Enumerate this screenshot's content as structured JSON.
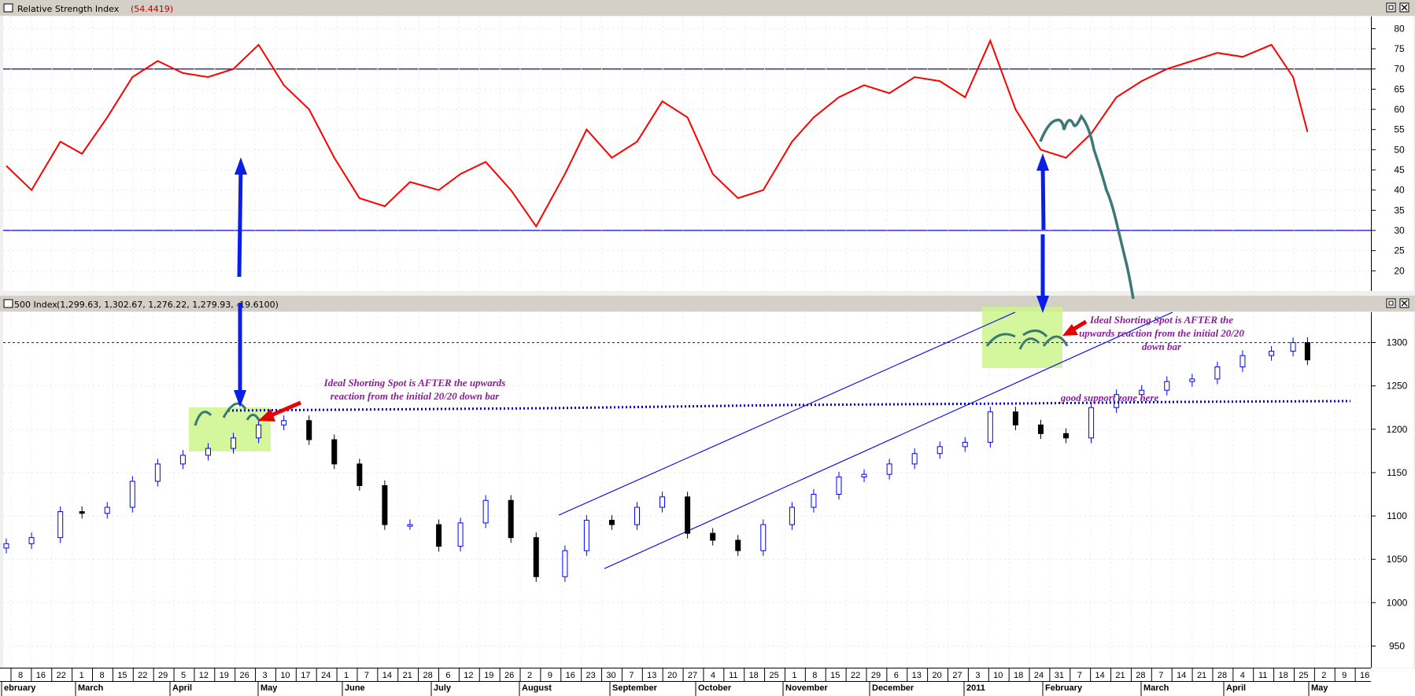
{
  "rsi_panel": {
    "title": "Relative Strength Index",
    "value_text": "(54.4419)"
  },
  "price_panel": {
    "title": "500 Index",
    "ohlc_text": "(1,299.63, 1,302.67, 1,276.22, 1,279.93, -19.6100)"
  },
  "annotations": {
    "left_note": [
      "Ideal Shorting Spot is AFTER the upwards",
      "reaction from the initial 20/20 down bar"
    ],
    "right_note": [
      "Ideal Shorting Spot is AFTER the",
      "upwards reaction from the initial 20/20",
      "down bar"
    ],
    "support_note": "good support zone here"
  },
  "colors": {
    "rsi_line": "#ff0000",
    "projection": "#3c7878",
    "channel": "#0000ff",
    "arrow_blue": "#0a1ee6",
    "arrow_red": "#e60000",
    "highlight": "#ccf58c",
    "note": "#8a1f9a"
  },
  "chart_data": [
    {
      "type": "line",
      "title": "Relative Strength Index",
      "current_value": 54.4419,
      "ylim": [
        15,
        83
      ],
      "yticks": [
        20,
        25,
        30,
        35,
        40,
        45,
        50,
        55,
        60,
        65,
        70,
        75,
        80
      ],
      "reference_lines": [
        70,
        30
      ],
      "x": [
        "2010-02-01",
        "2010-02-08",
        "2010-02-16",
        "2010-02-22",
        "2010-03-01",
        "2010-03-08",
        "2010-03-15",
        "2010-03-22",
        "2010-03-29",
        "2010-04-05",
        "2010-04-12",
        "2010-04-19",
        "2010-04-26",
        "2010-05-03",
        "2010-05-10",
        "2010-05-17",
        "2010-05-24",
        "2010-06-01",
        "2010-06-07",
        "2010-06-14",
        "2010-06-21",
        "2010-06-28",
        "2010-07-06",
        "2010-07-12",
        "2010-07-19",
        "2010-07-26",
        "2010-08-02",
        "2010-08-09",
        "2010-08-16",
        "2010-08-23",
        "2010-08-30",
        "2010-09-07",
        "2010-09-13",
        "2010-09-20",
        "2010-09-27",
        "2010-10-04",
        "2010-10-11",
        "2010-10-18",
        "2010-10-25",
        "2010-11-01",
        "2010-11-08",
        "2010-11-15",
        "2010-11-22",
        "2010-11-29",
        "2010-12-06",
        "2010-12-13",
        "2010-12-20",
        "2010-12-27",
        "2011-01-03",
        "2011-01-10",
        "2011-01-18",
        "2011-01-24",
        "2011-01-28"
      ],
      "values": [
        46,
        40,
        52,
        49,
        58,
        68,
        72,
        69,
        68,
        70,
        76,
        66,
        60,
        48,
        38,
        36,
        42,
        40,
        44,
        47,
        40,
        31,
        44,
        55,
        48,
        52,
        62,
        58,
        44,
        38,
        40,
        52,
        58,
        63,
        66,
        64,
        68,
        67,
        63,
        77,
        60,
        50,
        48,
        54,
        63,
        67,
        70,
        72,
        74,
        73,
        76,
        68,
        54.4
      ]
    },
    {
      "type": "candlestick",
      "title": "500 Index",
      "last_bar": {
        "open": 1299.63,
        "high": 1302.67,
        "low": 1276.22,
        "close": 1279.93,
        "change": -19.61
      },
      "ylim": [
        925,
        1335
      ],
      "yticks": [
        950,
        1000,
        1050,
        1100,
        1150,
        1200,
        1250,
        1300
      ],
      "reference_line": 1300,
      "support_line": 1225,
      "x": [
        "2010-02-01",
        "2010-02-08",
        "2010-02-16",
        "2010-02-22",
        "2010-03-01",
        "2010-03-08",
        "2010-03-15",
        "2010-03-22",
        "2010-03-29",
        "2010-04-05",
        "2010-04-12",
        "2010-04-19",
        "2010-04-26",
        "2010-05-03",
        "2010-05-10",
        "2010-05-17",
        "2010-05-24",
        "2010-06-01",
        "2010-06-07",
        "2010-06-14",
        "2010-06-21",
        "2010-06-28",
        "2010-07-06",
        "2010-07-12",
        "2010-07-19",
        "2010-07-26",
        "2010-08-02",
        "2010-08-09",
        "2010-08-16",
        "2010-08-23",
        "2010-08-30",
        "2010-09-07",
        "2010-09-13",
        "2010-09-20",
        "2010-09-27",
        "2010-10-04",
        "2010-10-11",
        "2010-10-18",
        "2010-10-25",
        "2010-11-01",
        "2010-11-08",
        "2010-11-15",
        "2010-11-22",
        "2010-11-29",
        "2010-12-06",
        "2010-12-13",
        "2010-12-20",
        "2010-12-27",
        "2011-01-03",
        "2011-01-10",
        "2011-01-18",
        "2011-01-24",
        "2011-01-28"
      ],
      "close": [
        1068,
        1075,
        1105,
        1103,
        1110,
        1140,
        1160,
        1170,
        1178,
        1190,
        1205,
        1210,
        1188,
        1160,
        1135,
        1090,
        1090,
        1065,
        1092,
        1118,
        1075,
        1030,
        1060,
        1095,
        1090,
        1110,
        1122,
        1080,
        1072,
        1060,
        1090,
        1110,
        1125,
        1145,
        1148,
        1160,
        1172,
        1180,
        1185,
        1220,
        1205,
        1195,
        1190,
        1225,
        1240,
        1245,
        1255,
        1258,
        1272,
        1285,
        1290,
        1300,
        1280
      ]
    }
  ],
  "x_axis": {
    "dates": [
      "8",
      "16",
      "22",
      "1",
      "8",
      "15",
      "22",
      "29",
      "5",
      "12",
      "19",
      "26",
      "3",
      "10",
      "17",
      "24",
      "1",
      "7",
      "14",
      "21",
      "28",
      "6",
      "12",
      "19",
      "26",
      "2",
      "9",
      "16",
      "23",
      "30",
      "7",
      "13",
      "20",
      "27",
      "4",
      "11",
      "18",
      "25",
      "1",
      "8",
      "15",
      "22",
      "29",
      "6",
      "13",
      "20",
      "27",
      "3",
      "10",
      "18",
      "24",
      "31",
      "7",
      "14",
      "21",
      "28",
      "7",
      "14",
      "21",
      "28",
      "4",
      "11",
      "18",
      "25",
      "2",
      "9",
      "16"
    ],
    "months": [
      "ebruary",
      "March",
      "April",
      "May",
      "June",
      "July",
      "August",
      "September",
      "October",
      "November",
      "December",
      "2011",
      "February",
      "March",
      "April",
      "May"
    ]
  }
}
